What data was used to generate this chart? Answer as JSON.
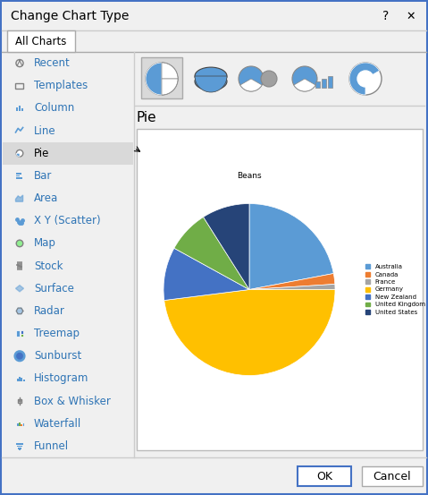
{
  "title": "Change Chart Type",
  "tab_label": "All Charts",
  "menu_items": [
    "Recent",
    "Templates",
    "Column",
    "Line",
    "Pie",
    "Bar",
    "Area",
    "X Y (Scatter)",
    "Map",
    "Stock",
    "Surface",
    "Radar",
    "Treemap",
    "Sunburst",
    "Histogram",
    "Box & Whisker",
    "Waterfall",
    "Funnel"
  ],
  "selected_item": "Pie",
  "selected_index": 4,
  "chart_title": "Beans",
  "pie_labels": [
    "Australia",
    "Canada",
    "France",
    "Germany",
    "New Zealand",
    "United Kingdom",
    "United States"
  ],
  "pie_values": [
    22,
    2,
    1,
    48,
    10,
    8,
    9
  ],
  "pie_colors": [
    "#5B9BD5",
    "#ED7D31",
    "#A5A5A5",
    "#FFC000",
    "#4472C4",
    "#70AD47",
    "#264478"
  ],
  "bg_color": "#F0F0F0",
  "panel_bg": "#FFFFFF",
  "highlight_color": "#D9D9D9",
  "menu_text_color": "#2E74B5",
  "ok_btn": "OK",
  "cancel_btn": "Cancel",
  "fig_w": 4.79,
  "fig_h": 5.53,
  "dpi": 100
}
